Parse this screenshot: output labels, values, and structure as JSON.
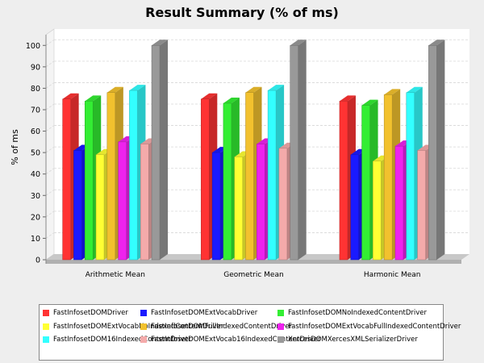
{
  "chart_data": {
    "type": "bar",
    "title": "Result Summary (% of ms)",
    "xlabel": "",
    "ylabel": "% of ms",
    "ylim": [
      0,
      105
    ],
    "yticks": [
      0,
      10,
      20,
      30,
      40,
      50,
      60,
      70,
      80,
      90,
      100
    ],
    "grid": true,
    "legend_position": "bottom",
    "categories": [
      "Arithmetic Mean",
      "Geometric Mean",
      "Harmonic Mean"
    ],
    "series": [
      {
        "name": "FastInfosetDOMDriver",
        "color": "#ff3333",
        "values": [
          75,
          75,
          74
        ]
      },
      {
        "name": "FastInfosetDOMExtVocabDriver",
        "color": "#1a1aff",
        "values": [
          51,
          50,
          49
        ]
      },
      {
        "name": "FastInfosetDOMExtVocabNoIndexedContentDriver",
        "color": "#ffff33",
        "values": [
          49,
          48,
          46
        ]
      },
      {
        "name": "FastInfosetDOMExtVocabFullIndexedContentDriver",
        "color": "#ee22ee",
        "values": [
          55,
          54,
          53
        ]
      },
      {
        "name": "FastInfosetDOMExtVocab16IndexedContentDriver",
        "color": "#f4aaaa",
        "values": [
          54,
          52,
          51
        ]
      },
      {
        "name": "FastInfosetDOMNoIndexedContentDriver",
        "color": "#33ee33",
        "values": [
          74,
          73,
          72
        ]
      },
      {
        "name": "FastInfosetDOMFullIndexedContentDriver",
        "color": "#f2c12e",
        "values": [
          78,
          78,
          77
        ]
      },
      {
        "name": "FastInfosetDOM16IndexedContentDriver",
        "color": "#33ffff",
        "values": [
          79,
          79,
          78
        ]
      },
      {
        "name": "XercesDOMXercesXMLSerializerDriver",
        "color": "#999999",
        "values": [
          100,
          100,
          100
        ]
      }
    ],
    "bar_order": [
      0,
      1,
      5,
      2,
      6,
      3,
      7,
      4,
      8
    ],
    "legend_order": [
      0,
      1,
      5,
      2,
      6,
      3,
      7,
      4,
      8
    ]
  }
}
